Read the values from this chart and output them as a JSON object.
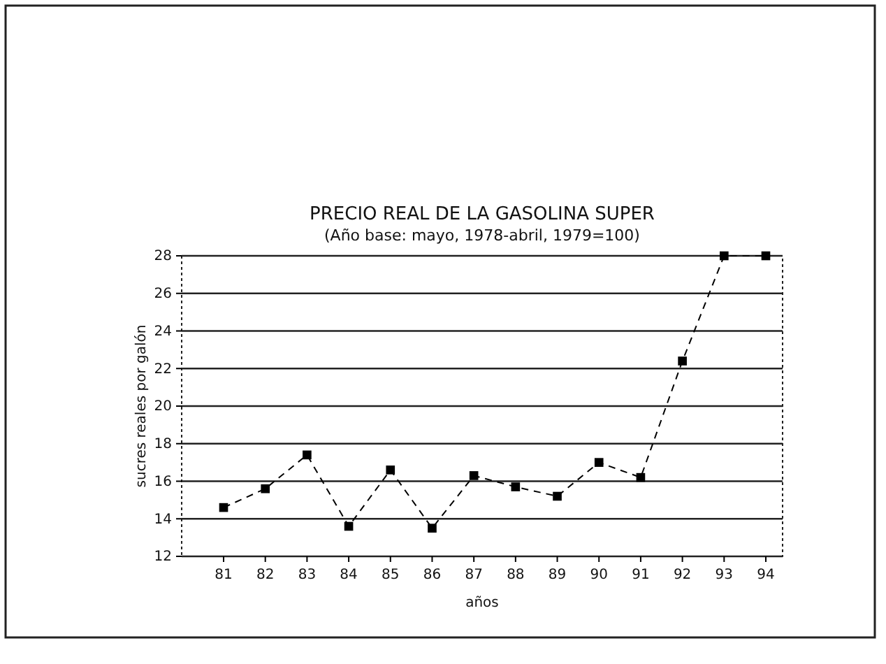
{
  "chart_data": {
    "type": "line",
    "title": "PRECIO REAL DE LA GASOLINA SUPER",
    "subtitle": "(Año base: mayo, 1978-abril, 1979=100)",
    "xlabel": "años",
    "ylabel": "sucres reales por galón",
    "categories": [
      "81",
      "82",
      "83",
      "84",
      "85",
      "86",
      "87",
      "88",
      "89",
      "90",
      "91",
      "92",
      "93",
      "94"
    ],
    "series": [
      {
        "color": "#000000",
        "values": [
          14.6,
          15.6,
          17.4,
          13.6,
          16.6,
          13.5,
          16.3,
          15.7,
          15.2,
          17.0,
          16.2,
          22.4,
          28,
          28
        ]
      }
    ],
    "ylim": [
      12,
      28
    ],
    "yticks": [
      12,
      14,
      16,
      18,
      20,
      22,
      24,
      26,
      28
    ],
    "grid": "y",
    "marker": "square",
    "line_style": "dashed"
  }
}
